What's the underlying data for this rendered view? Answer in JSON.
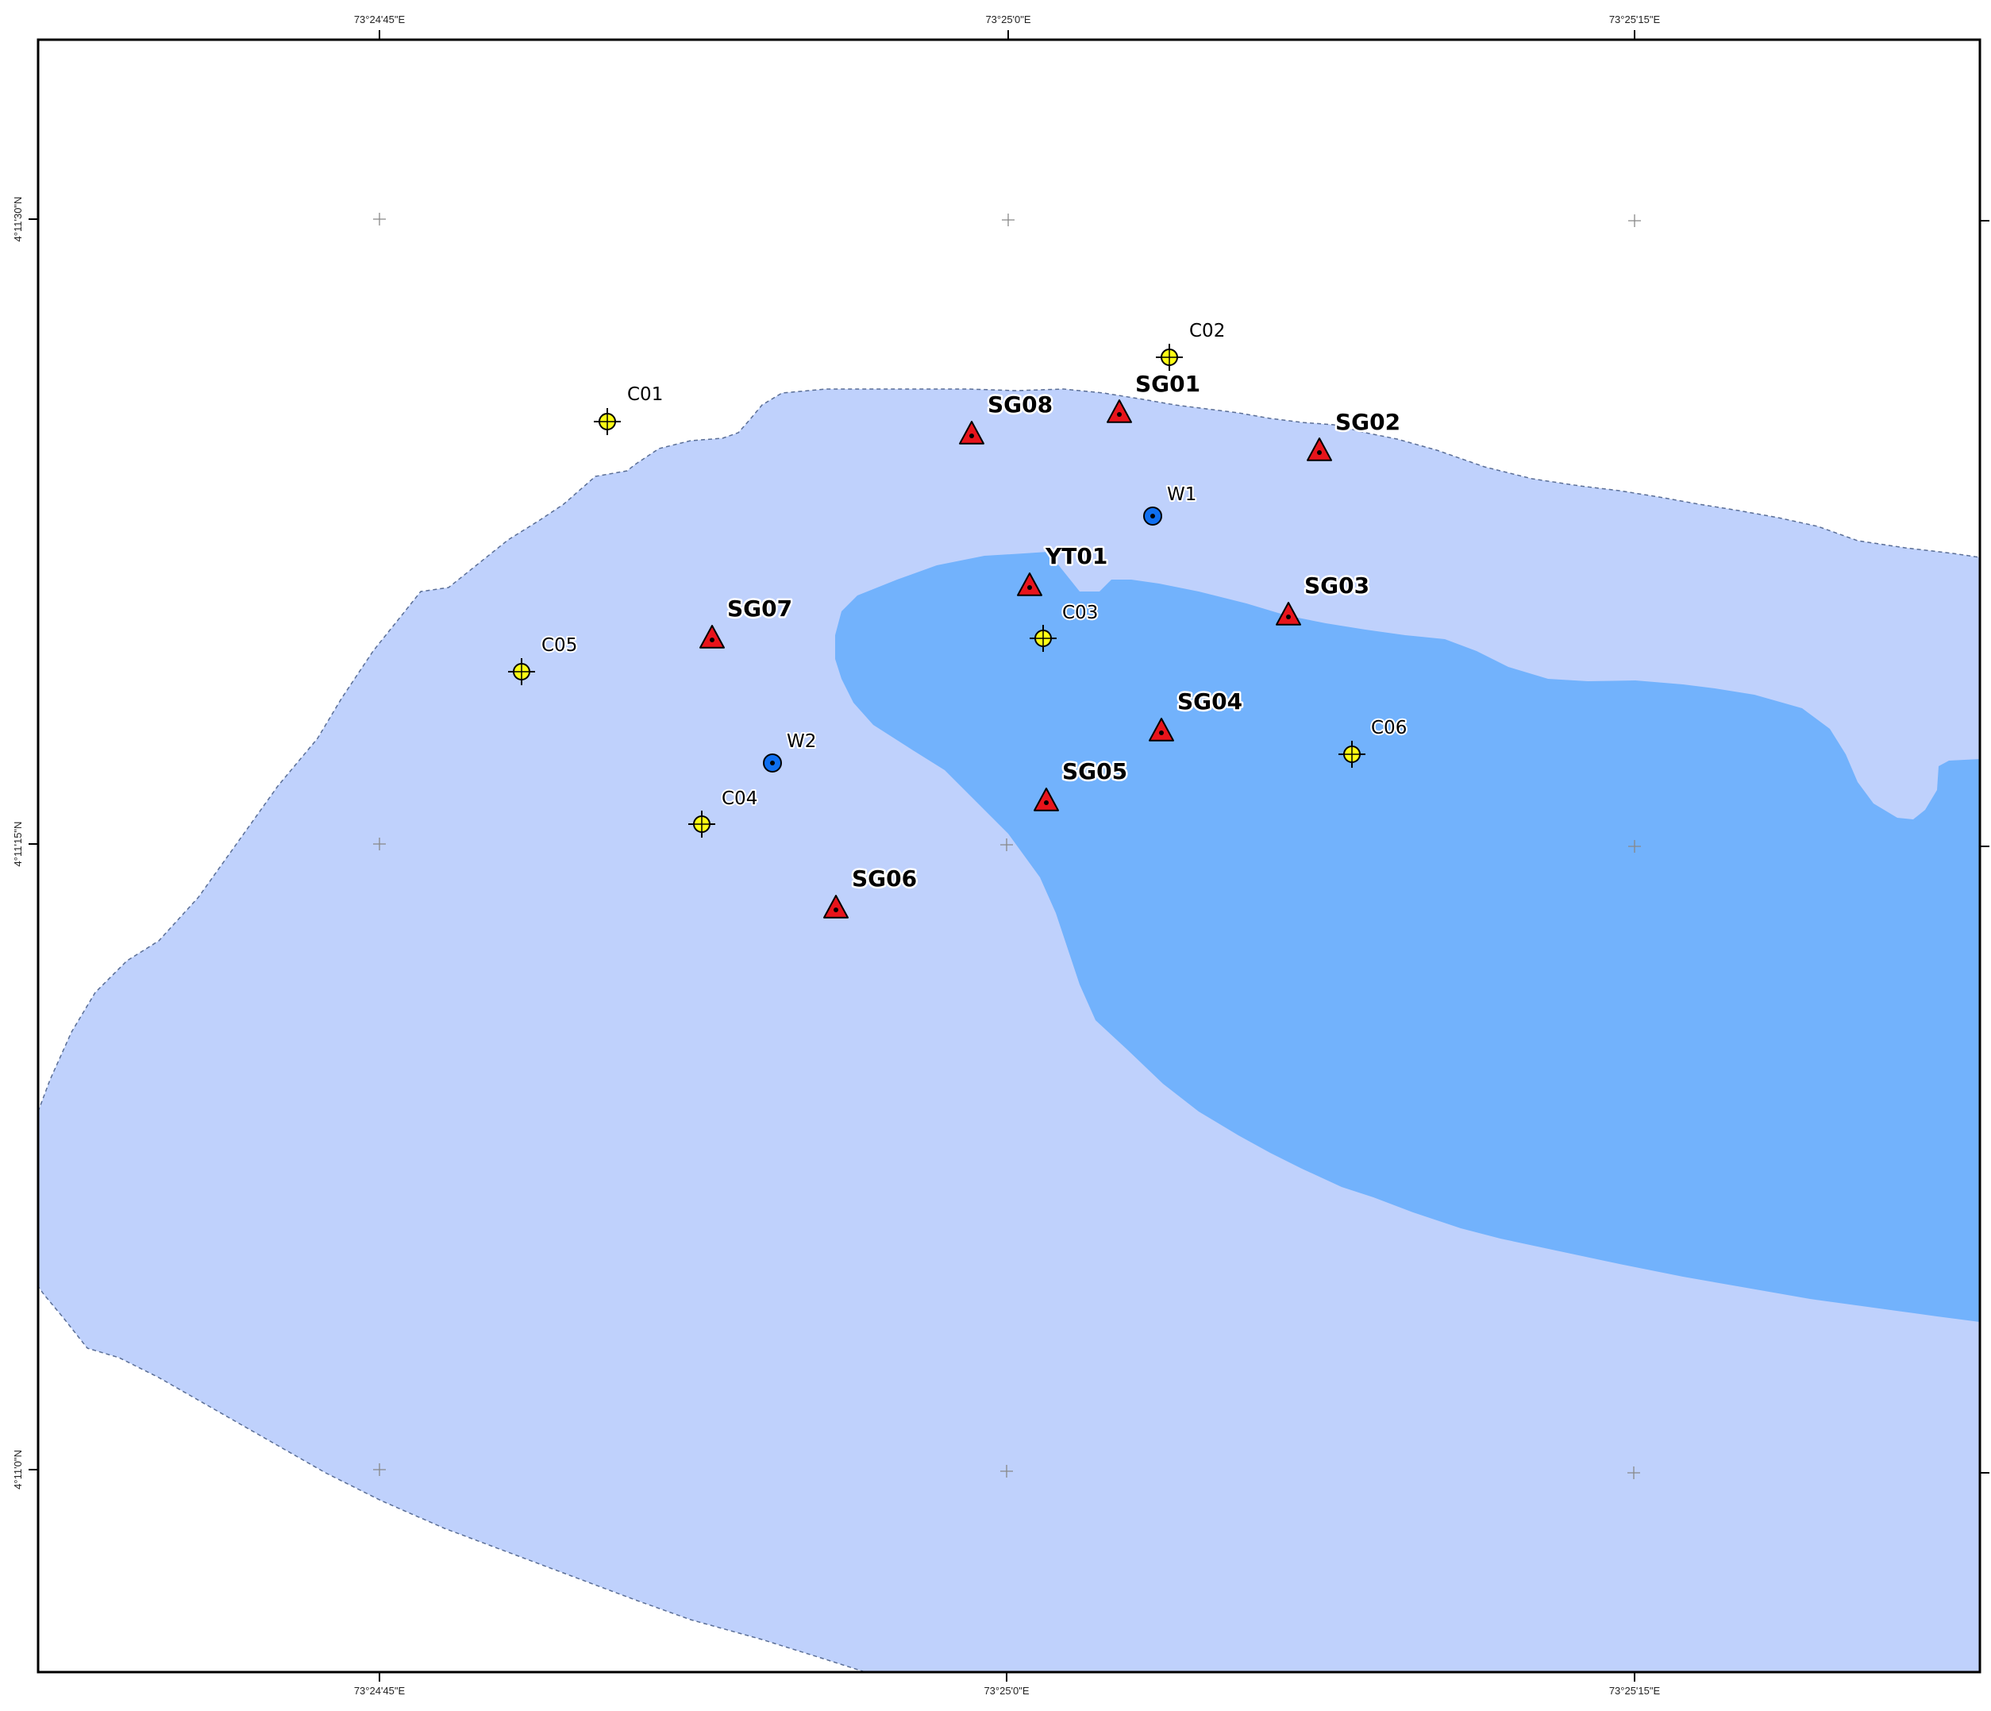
{
  "map": {
    "coordinate_labels": {
      "top": [
        "73°24'45\"E",
        "73°25'0\"E",
        "73°25'15\"E"
      ],
      "bottom": [
        "73°24'45\"E",
        "73°25'0\"E",
        "73°25'15\"E"
      ],
      "left": [
        "4°11'30\"N",
        "4°11'15\"N",
        "4°11'0\"N"
      ]
    },
    "colors": {
      "outer_zone": "#bfd1fc",
      "inner_zone": "#72b2fc",
      "outer_zone_border": "#5a6e96",
      "triangle": "#e8141b",
      "circle_marker": "#ffff14",
      "well_marker": "#0f6ff0",
      "grid_cross": "#888888"
    },
    "points": [
      {
        "id": "C01",
        "kind": "crosshair"
      },
      {
        "id": "C02",
        "kind": "crosshair"
      },
      {
        "id": "C03",
        "kind": "crosshair"
      },
      {
        "id": "C04",
        "kind": "crosshair"
      },
      {
        "id": "C05",
        "kind": "crosshair"
      },
      {
        "id": "C06",
        "kind": "crosshair"
      },
      {
        "id": "SG01",
        "kind": "triangle"
      },
      {
        "id": "SG02",
        "kind": "triangle"
      },
      {
        "id": "SG03",
        "kind": "triangle"
      },
      {
        "id": "SG04",
        "kind": "triangle"
      },
      {
        "id": "SG05",
        "kind": "triangle"
      },
      {
        "id": "SG06",
        "kind": "triangle"
      },
      {
        "id": "SG07",
        "kind": "triangle"
      },
      {
        "id": "SG08",
        "kind": "triangle"
      },
      {
        "id": "YT01",
        "kind": "triangle"
      },
      {
        "id": "W1",
        "kind": "well"
      },
      {
        "id": "W2",
        "kind": "well"
      }
    ]
  }
}
